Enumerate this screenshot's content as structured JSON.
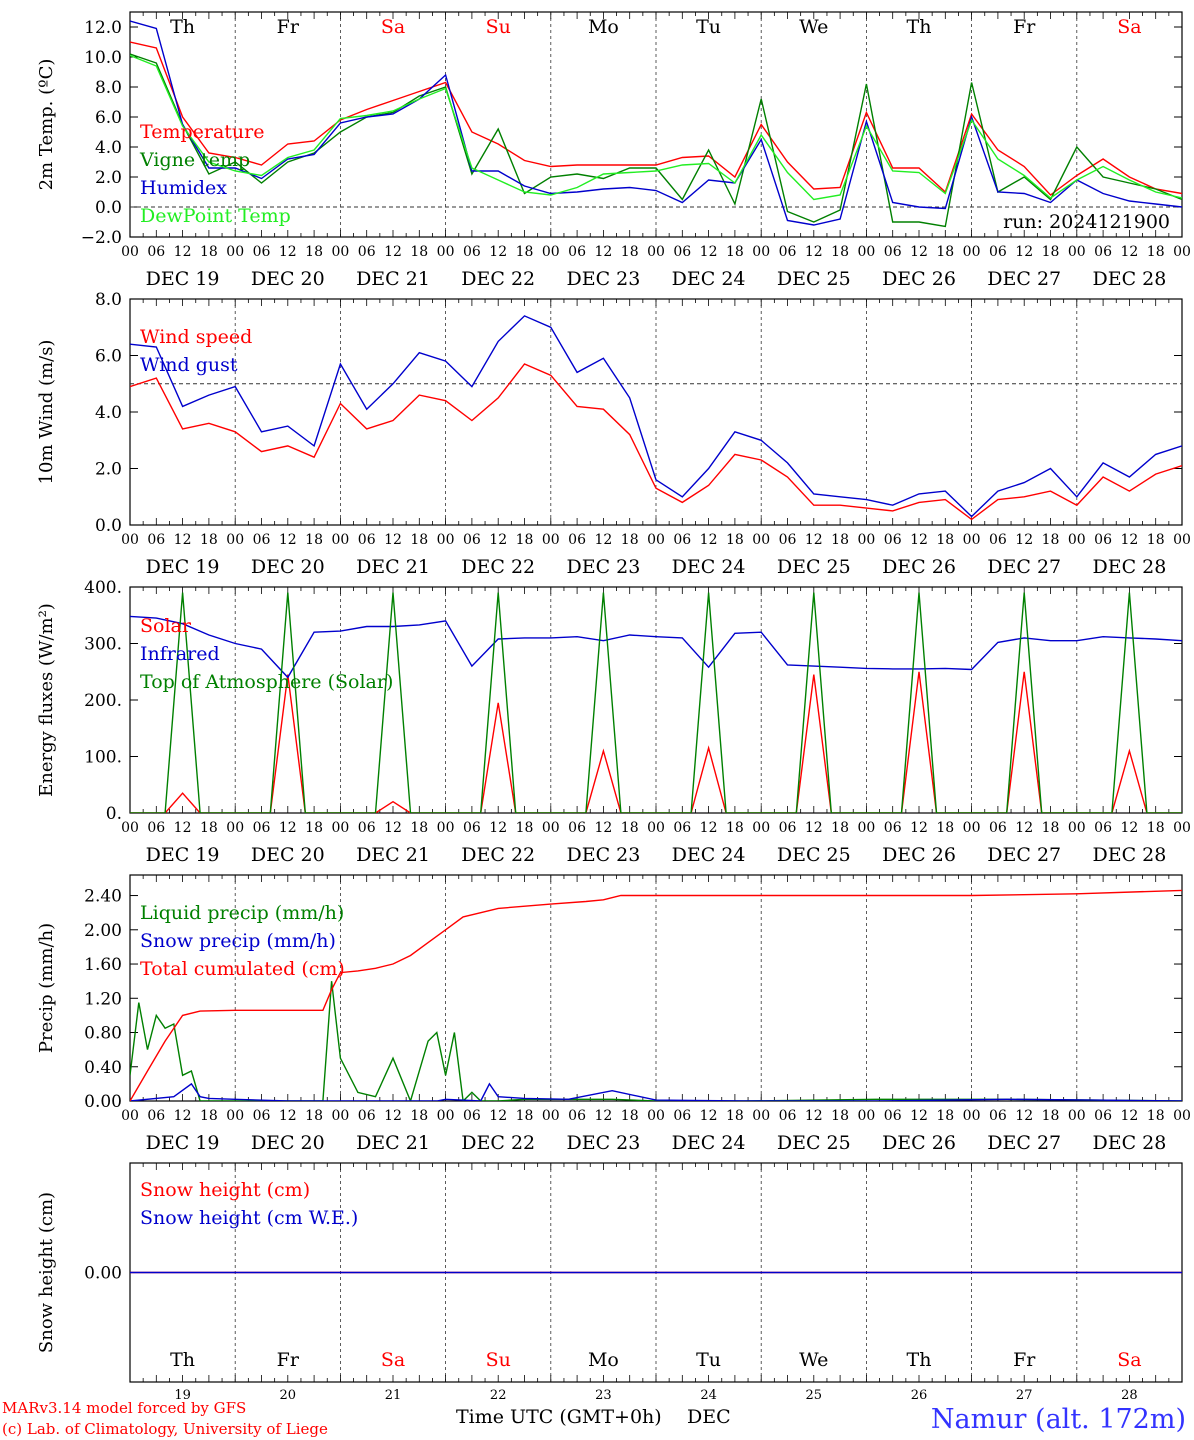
{
  "page": {
    "footer_left_1": "MARv3.14 model forced by GFS",
    "footer_left_2": "(c) Lab. of Climatology, University of Liege",
    "xlabel": "Time UTC (GMT+0h)",
    "xlabel_month": "DEC",
    "station": "Namur (alt. 172m)",
    "run_label": "run: 2024121900"
  },
  "colors": {
    "red": "#ff0000",
    "green": "#008000",
    "blue": "#0000cc",
    "lightgreen": "#22ee22",
    "weekend": "#ff0000",
    "weekday": "#000000",
    "footer": "#ff0000",
    "station": "#3333ff"
  },
  "days": {
    "weekday_labels": [
      "Th",
      "Fr",
      "Sa",
      "Su",
      "Mo",
      "Tu",
      "We",
      "Th",
      "Fr",
      "Sa"
    ],
    "weekend": [
      false,
      false,
      true,
      true,
      false,
      false,
      false,
      false,
      false,
      true
    ],
    "date_labels": [
      "DEC 19",
      "DEC 20",
      "DEC 21",
      "DEC 22",
      "DEC 23",
      "DEC 24",
      "DEC 25",
      "DEC 26",
      "DEC 27",
      "DEC 28"
    ],
    "day_numbers": [
      "19",
      "20",
      "21",
      "22",
      "23",
      "24",
      "25",
      "26",
      "27",
      "28"
    ],
    "hour_ticks": [
      "00",
      "06",
      "12",
      "18"
    ],
    "final_hour": "00"
  },
  "chart_data": [
    {
      "type": "line",
      "ylabel": "2m Temp. (ºC)",
      "ylim": [
        -2.0,
        13.0
      ],
      "yticks": [
        "12.0",
        "10.0",
        "8.0",
        "6.0",
        "4.0",
        "2.0",
        "0.0",
        "−2.0"
      ],
      "reference_line": 0.0,
      "x_unit": "hours since DEC 19 00 UTC",
      "series": [
        {
          "name": "Temperature",
          "color": "red",
          "x": [
            0,
            6,
            12,
            18,
            24,
            30,
            36,
            42,
            48,
            54,
            60,
            66,
            72,
            78,
            84,
            90,
            96,
            102,
            108,
            114,
            120,
            126,
            132,
            138,
            144,
            150,
            156,
            162,
            168,
            174,
            180,
            186,
            192,
            198,
            204,
            210,
            216,
            222,
            228,
            234,
            240
          ],
          "y": [
            11.0,
            10.6,
            6.0,
            3.6,
            3.3,
            2.8,
            4.2,
            4.4,
            5.8,
            6.5,
            7.1,
            7.7,
            8.3,
            5.0,
            4.2,
            3.1,
            2.7,
            2.8,
            2.8,
            2.8,
            2.8,
            3.3,
            3.4,
            2.0,
            5.5,
            3.0,
            1.2,
            1.3,
            6.3,
            2.6,
            2.6,
            1.0,
            6.2,
            3.8,
            2.7,
            0.8,
            2.1,
            3.2,
            2.0,
            1.2,
            0.9
          ]
        },
        {
          "name": "Vigne temp",
          "color": "green",
          "x": [
            0,
            6,
            12,
            18,
            24,
            30,
            36,
            42,
            48,
            54,
            60,
            66,
            72,
            78,
            84,
            90,
            96,
            102,
            108,
            114,
            120,
            126,
            132,
            138,
            144,
            150,
            156,
            162,
            168,
            174,
            180,
            186,
            192,
            198,
            204,
            210,
            216,
            222,
            228,
            234,
            240
          ],
          "y": [
            10.2,
            9.6,
            5.5,
            2.2,
            3.0,
            1.6,
            3.0,
            3.6,
            5.0,
            6.0,
            6.3,
            7.4,
            8.0,
            2.2,
            5.2,
            0.9,
            2.0,
            2.2,
            1.9,
            2.6,
            2.6,
            0.5,
            3.8,
            0.2,
            7.2,
            -0.3,
            -1.0,
            -0.2,
            8.2,
            -1.0,
            -1.0,
            -1.3,
            8.3,
            1.0,
            2.0,
            0.5,
            4.0,
            2.0,
            1.6,
            1.2,
            0.5
          ]
        },
        {
          "name": "Humidex",
          "color": "blue",
          "x": [
            0,
            6,
            12,
            18,
            24,
            30,
            36,
            42,
            48,
            54,
            60,
            66,
            72,
            78,
            84,
            90,
            96,
            102,
            108,
            114,
            120,
            126,
            132,
            138,
            144,
            150,
            156,
            162,
            168,
            174,
            180,
            186,
            192,
            198,
            204,
            210,
            216,
            222,
            228,
            234,
            240
          ],
          "y": [
            12.4,
            11.9,
            5.5,
            2.6,
            2.6,
            1.9,
            3.2,
            3.5,
            5.6,
            6.0,
            6.2,
            7.2,
            8.8,
            2.4,
            2.4,
            1.4,
            0.9,
            1.0,
            1.2,
            1.3,
            1.1,
            0.3,
            1.8,
            1.6,
            4.5,
            -0.9,
            -1.2,
            -0.8,
            5.7,
            0.3,
            0.0,
            -0.1,
            6.0,
            1.0,
            0.9,
            0.3,
            1.8,
            0.9,
            0.4,
            0.2,
            0.0
          ]
        },
        {
          "name": "DewPoint Temp",
          "color": "lightgreen",
          "x": [
            0,
            6,
            12,
            18,
            24,
            30,
            36,
            42,
            48,
            54,
            60,
            66,
            72,
            78,
            84,
            90,
            96,
            102,
            108,
            114,
            120,
            126,
            132,
            138,
            144,
            150,
            156,
            162,
            168,
            174,
            180,
            186,
            192,
            198,
            204,
            210,
            216,
            222,
            228,
            234,
            240
          ],
          "y": [
            10.1,
            9.4,
            5.4,
            3.0,
            2.4,
            2.1,
            3.3,
            3.8,
            5.9,
            6.1,
            6.4,
            7.2,
            7.9,
            2.6,
            1.8,
            1.0,
            0.8,
            1.3,
            2.2,
            2.3,
            2.4,
            2.8,
            2.9,
            1.6,
            4.8,
            2.3,
            0.5,
            0.8,
            5.4,
            2.4,
            2.3,
            0.9,
            5.8,
            3.2,
            2.1,
            0.6,
            1.8,
            2.7,
            1.8,
            1.0,
            0.6
          ]
        }
      ]
    },
    {
      "type": "line",
      "ylabel": "10m Wind (m/s)",
      "ylim": [
        0.0,
        8.0
      ],
      "yticks": [
        "8.0",
        "6.0",
        "4.0",
        "2.0",
        "0.0"
      ],
      "reference_line": 5.0,
      "x_unit": "hours since DEC 19 00 UTC",
      "series": [
        {
          "name": "Wind speed",
          "color": "red",
          "x": [
            0,
            6,
            12,
            18,
            24,
            30,
            36,
            42,
            48,
            54,
            60,
            66,
            72,
            78,
            84,
            90,
            96,
            102,
            108,
            114,
            120,
            126,
            132,
            138,
            144,
            150,
            156,
            162,
            168,
            174,
            180,
            186,
            192,
            198,
            204,
            210,
            216,
            222,
            228,
            234,
            240
          ],
          "y": [
            4.9,
            5.2,
            3.4,
            3.6,
            3.3,
            2.6,
            2.8,
            2.4,
            4.3,
            3.4,
            3.7,
            4.6,
            4.4,
            3.7,
            4.5,
            5.7,
            5.3,
            4.2,
            4.1,
            3.2,
            1.3,
            0.8,
            1.4,
            2.5,
            2.3,
            1.7,
            0.7,
            0.7,
            0.6,
            0.5,
            0.8,
            0.9,
            0.2,
            0.9,
            1.0,
            1.2,
            0.7,
            1.7,
            1.2,
            1.8,
            2.1
          ]
        },
        {
          "name": "Wind gust",
          "color": "blue",
          "x": [
            0,
            6,
            12,
            18,
            24,
            30,
            36,
            42,
            48,
            54,
            60,
            66,
            72,
            78,
            84,
            90,
            96,
            102,
            108,
            114,
            120,
            126,
            132,
            138,
            144,
            150,
            156,
            162,
            168,
            174,
            180,
            186,
            192,
            198,
            204,
            210,
            216,
            222,
            228,
            234,
            240
          ],
          "y": [
            6.4,
            6.3,
            4.2,
            4.6,
            4.9,
            3.3,
            3.5,
            2.8,
            5.7,
            4.1,
            5.0,
            6.1,
            5.8,
            4.9,
            6.5,
            7.4,
            7.0,
            5.4,
            5.9,
            4.5,
            1.6,
            1.0,
            2.0,
            3.3,
            3.0,
            2.2,
            1.1,
            1.0,
            0.9,
            0.7,
            1.1,
            1.2,
            0.3,
            1.2,
            1.5,
            2.0,
            1.0,
            2.2,
            1.7,
            2.5,
            2.8
          ]
        }
      ]
    },
    {
      "type": "line",
      "ylabel": "Energy fluxes (W/m²)",
      "ylim": [
        0,
        400
      ],
      "yticks": [
        "400.",
        "300.",
        "200.",
        "100.",
        "0."
      ],
      "x_unit": "hours since DEC 19 00 UTC",
      "series": [
        {
          "name": "Solar",
          "color": "red",
          "x": [
            0,
            8,
            12,
            16,
            32,
            36,
            40,
            56,
            60,
            64,
            80,
            84,
            88,
            104,
            108,
            112,
            128,
            132,
            136,
            152,
            156,
            160,
            176,
            180,
            184,
            200,
            204,
            208,
            224,
            228,
            232,
            240
          ],
          "y": [
            0,
            0,
            35,
            0,
            0,
            245,
            0,
            0,
            20,
            0,
            0,
            195,
            0,
            0,
            110,
            0,
            0,
            115,
            0,
            0,
            245,
            0,
            0,
            250,
            0,
            0,
            250,
            0,
            0,
            110,
            0,
            0
          ]
        },
        {
          "name": "Infrared",
          "color": "blue",
          "x": [
            0,
            6,
            12,
            18,
            24,
            30,
            36,
            42,
            48,
            54,
            60,
            66,
            72,
            78,
            84,
            90,
            96,
            102,
            108,
            114,
            120,
            126,
            132,
            138,
            144,
            150,
            156,
            162,
            168,
            174,
            180,
            186,
            192,
            198,
            204,
            210,
            216,
            222,
            228,
            234,
            240
          ],
          "y": [
            348,
            345,
            335,
            315,
            300,
            290,
            240,
            320,
            322,
            330,
            330,
            333,
            340,
            260,
            308,
            310,
            310,
            312,
            305,
            315,
            312,
            310,
            258,
            318,
            320,
            262,
            260,
            258,
            256,
            255,
            255,
            256,
            254,
            302,
            310,
            305,
            305,
            312,
            310,
            308,
            305
          ]
        },
        {
          "name": "Top of Atmosphere (Solar)",
          "color": "green",
          "x": [
            0,
            8,
            12,
            16,
            32,
            36,
            40,
            56,
            60,
            64,
            80,
            84,
            88,
            104,
            108,
            112,
            128,
            132,
            136,
            152,
            156,
            160,
            176,
            180,
            184,
            200,
            204,
            208,
            224,
            228,
            232,
            240
          ],
          "y": [
            0,
            0,
            390,
            0,
            0,
            390,
            0,
            0,
            390,
            0,
            0,
            390,
            0,
            0,
            390,
            0,
            0,
            390,
            0,
            0,
            390,
            0,
            0,
            390,
            0,
            0,
            390,
            0,
            0,
            390,
            0,
            0
          ]
        }
      ]
    },
    {
      "type": "line",
      "ylabel": "Precip (mm/h)",
      "ylim": [
        0.0,
        2.64
      ],
      "yticks": [
        "2.40",
        "2.00",
        "1.60",
        "1.20",
        "0.80",
        "0.40",
        "0.00"
      ],
      "x_unit": "hours since DEC 19 00 UTC",
      "series": [
        {
          "name": "Liquid precip (mm/h)",
          "color": "green",
          "x": [
            0,
            2,
            4,
            6,
            8,
            10,
            12,
            14,
            16,
            18,
            20,
            24,
            36,
            44,
            46,
            48,
            52,
            56,
            60,
            64,
            68,
            70,
            72,
            74,
            76,
            78,
            80,
            84,
            90,
            100,
            110,
            120,
            140,
            170,
            200,
            220,
            240
          ],
          "y": [
            0.3,
            1.15,
            0.6,
            1.0,
            0.85,
            0.9,
            0.3,
            0.35,
            0.0,
            0.0,
            0.0,
            0.0,
            0.0,
            0.0,
            1.4,
            0.5,
            0.1,
            0.05,
            0.5,
            0.0,
            0.7,
            0.8,
            0.3,
            0.8,
            0.0,
            0.1,
            0.0,
            0.0,
            0.02,
            0.02,
            0.02,
            0.0,
            0.0,
            0.02,
            0.02,
            0.01,
            0.0
          ]
        },
        {
          "name": "Snow precip (mm/h)",
          "color": "blue",
          "x": [
            0,
            10,
            14,
            16,
            18,
            24,
            36,
            48,
            70,
            72,
            80,
            82,
            84,
            90,
            100,
            110,
            120,
            140,
            170,
            200,
            220,
            240
          ],
          "y": [
            0.0,
            0.05,
            0.2,
            0.05,
            0.03,
            0.02,
            0.0,
            0.0,
            0.0,
            0.02,
            0.0,
            0.2,
            0.05,
            0.03,
            0.02,
            0.12,
            0.01,
            0.0,
            0.0,
            0.02,
            0.01,
            0.0
          ]
        },
        {
          "name": "Total cumulated (cm)",
          "color": "red",
          "x": [
            0,
            4,
            8,
            12,
            16,
            24,
            36,
            44,
            46,
            48,
            52,
            56,
            60,
            64,
            68,
            72,
            76,
            80,
            84,
            96,
            104,
            108,
            112,
            120,
            144,
            168,
            192,
            216,
            240
          ],
          "y": [
            0.0,
            0.35,
            0.7,
            1.0,
            1.05,
            1.06,
            1.06,
            1.06,
            1.3,
            1.5,
            1.52,
            1.55,
            1.6,
            1.7,
            1.85,
            2.0,
            2.15,
            2.2,
            2.25,
            2.3,
            2.33,
            2.35,
            2.4,
            2.4,
            2.4,
            2.4,
            2.4,
            2.42,
            2.46
          ]
        }
      ]
    },
    {
      "type": "line",
      "ylabel": "Snow height (cm)",
      "ylim": [
        -0.04,
        0.04
      ],
      "yticks": [
        "0.00"
      ],
      "x_unit": "hours since DEC 19 00 UTC",
      "series": [
        {
          "name": "Snow height (cm)",
          "color": "red",
          "x": [
            0,
            240
          ],
          "y": [
            0.0,
            0.0
          ]
        },
        {
          "name": "Snow height (cm W.E.)",
          "color": "blue",
          "x": [
            0,
            240
          ],
          "y": [
            0.0,
            0.0
          ]
        }
      ]
    }
  ]
}
